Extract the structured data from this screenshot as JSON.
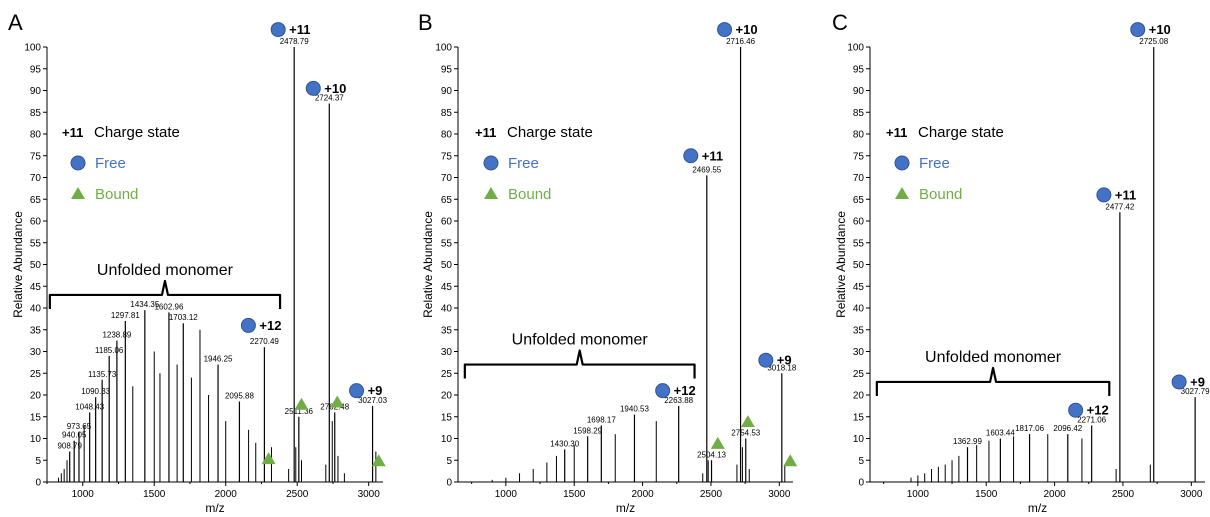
{
  "colors": {
    "free": "#4472C4",
    "bound": "#70AD47",
    "axis": "#000000"
  },
  "legend": {
    "charge_symbol": "+11",
    "charge_label": "Charge state",
    "free_label": "Free",
    "bound_label": "Bound"
  },
  "chart_data": [
    {
      "type": "bar",
      "panel": "A",
      "xlabel": "m/z",
      "ylabel": "Relative Abundance",
      "xlim": [
        750,
        3100
      ],
      "ylim": [
        0,
        100
      ],
      "xticks": [
        1000,
        1500,
        2000,
        2500,
        3000
      ],
      "yticks": [
        0,
        5,
        10,
        15,
        20,
        25,
        30,
        35,
        40,
        45,
        50,
        55,
        60,
        65,
        70,
        75,
        80,
        85,
        90,
        95,
        100
      ],
      "bracket_label": "Unfolded monomer",
      "bracket_range": [
        770,
        2380
      ],
      "bracket_y": 43,
      "peaks": [
        {
          "mz": 908.79,
          "y": 7,
          "label": "908.79"
        },
        {
          "mz": 940.05,
          "y": 9.5,
          "label": "940.05"
        },
        {
          "mz": 973.65,
          "y": 11.5,
          "label": "973.65"
        },
        {
          "mz": 1048.43,
          "y": 16,
          "label": "1048.43"
        },
        {
          "mz": 1090.33,
          "y": 19.5,
          "label": "1090.33"
        },
        {
          "mz": 1135.73,
          "y": 23.5,
          "label": "1135.73"
        },
        {
          "mz": 1185.06,
          "y": 29,
          "label": "1185.06"
        },
        {
          "mz": 1238.89,
          "y": 32.5,
          "label": "1238.89"
        },
        {
          "mz": 1297.81,
          "y": 37,
          "label": "1297.81"
        },
        {
          "mz": 1434.35,
          "y": 39.5,
          "label": "1434.35"
        },
        {
          "mz": 1602.96,
          "y": 39,
          "label": "1602.96"
        },
        {
          "mz": 1703.12,
          "y": 36.5,
          "label": "1703.12"
        },
        {
          "mz": 1946.25,
          "y": 27,
          "label": "1946.25"
        },
        {
          "mz": 2095.88,
          "y": 18.5,
          "label": "2095.88"
        },
        {
          "mz": 2270.49,
          "y": 31,
          "label": "2270.49"
        },
        {
          "mz": 2478.79,
          "y": 100,
          "label": "2478.79"
        },
        {
          "mz": 2511.36,
          "y": 15,
          "label": "2511.36"
        },
        {
          "mz": 2724.37,
          "y": 87,
          "label": "2724.37"
        },
        {
          "mz": 2762.48,
          "y": 16,
          "label": "2762.48"
        },
        {
          "mz": 3027.03,
          "y": 17.5,
          "label": "3027.03"
        }
      ],
      "minor_peaks": [
        {
          "mz": 830,
          "y": 1
        },
        {
          "mz": 850,
          "y": 2
        },
        {
          "mz": 870,
          "y": 3
        },
        {
          "mz": 890,
          "y": 5
        },
        {
          "mz": 1010,
          "y": 13
        },
        {
          "mz": 1350,
          "y": 22
        },
        {
          "mz": 1500,
          "y": 30
        },
        {
          "mz": 1540,
          "y": 25
        },
        {
          "mz": 1660,
          "y": 27
        },
        {
          "mz": 1760,
          "y": 24
        },
        {
          "mz": 1820,
          "y": 35
        },
        {
          "mz": 1880,
          "y": 20
        },
        {
          "mz": 2000,
          "y": 14
        },
        {
          "mz": 2160,
          "y": 12
        },
        {
          "mz": 2210,
          "y": 9
        },
        {
          "mz": 2320,
          "y": 8
        },
        {
          "mz": 2440,
          "y": 3
        },
        {
          "mz": 2490,
          "y": 8
        },
        {
          "mz": 2530,
          "y": 5
        },
        {
          "mz": 2700,
          "y": 4
        },
        {
          "mz": 2745,
          "y": 14
        },
        {
          "mz": 2785,
          "y": 6
        },
        {
          "mz": 2830,
          "y": 2
        },
        {
          "mz": 3050,
          "y": 7
        }
      ],
      "free_markers": [
        {
          "mz": 2478.79,
          "y": 104,
          "charge": "+11"
        },
        {
          "mz": 2724.37,
          "y": 90.5,
          "charge": "+10"
        },
        {
          "mz": 2270.49,
          "y": 36,
          "charge": "+12"
        },
        {
          "mz": 3027.03,
          "y": 21,
          "charge": "+9"
        }
      ],
      "bound_markers": [
        {
          "mz": 2300,
          "y": 5.5
        },
        {
          "mz": 2530,
          "y": 18
        },
        {
          "mz": 2780,
          "y": 18.5
        },
        {
          "mz": 3070,
          "y": 5
        }
      ]
    },
    {
      "type": "bar",
      "panel": "B",
      "xlabel": "m/z",
      "ylabel": "Relative Abundance",
      "xlim": [
        650,
        3100
      ],
      "ylim": [
        0,
        100
      ],
      "xticks": [
        1000,
        1500,
        2000,
        2500,
        3000
      ],
      "yticks": [
        0,
        5,
        10,
        15,
        20,
        25,
        30,
        35,
        40,
        45,
        50,
        55,
        60,
        65,
        70,
        75,
        80,
        85,
        90,
        95,
        100
      ],
      "bracket_label": "Unfolded monomer",
      "bracket_range": [
        700,
        2380
      ],
      "bracket_y": 27,
      "peaks": [
        {
          "mz": 1430.3,
          "y": 7.5,
          "label": "1430.30"
        },
        {
          "mz": 1598.29,
          "y": 10.5,
          "label": "1598.29"
        },
        {
          "mz": 1698.17,
          "y": 13,
          "label": "1698.17"
        },
        {
          "mz": 1940.53,
          "y": 15.5,
          "label": "1940.53"
        },
        {
          "mz": 2263.88,
          "y": 17.5,
          "label": "2263.88"
        },
        {
          "mz": 2469.55,
          "y": 70.5,
          "label": "2469.55"
        },
        {
          "mz": 2504.13,
          "y": 5,
          "label": "2504.13"
        },
        {
          "mz": 2716.46,
          "y": 100,
          "label": "2716.46"
        },
        {
          "mz": 2754.53,
          "y": 10,
          "label": "2754.53"
        },
        {
          "mz": 3018.18,
          "y": 25,
          "label": "3018.18"
        }
      ],
      "minor_peaks": [
        {
          "mz": 900,
          "y": 0.5
        },
        {
          "mz": 1000,
          "y": 1
        },
        {
          "mz": 1100,
          "y": 2
        },
        {
          "mz": 1200,
          "y": 3
        },
        {
          "mz": 1300,
          "y": 4.5
        },
        {
          "mz": 1370,
          "y": 6
        },
        {
          "mz": 1500,
          "y": 8.5
        },
        {
          "mz": 1800,
          "y": 11
        },
        {
          "mz": 2100,
          "y": 14
        },
        {
          "mz": 2440,
          "y": 2
        },
        {
          "mz": 2480,
          "y": 5
        },
        {
          "mz": 2690,
          "y": 4
        },
        {
          "mz": 2730,
          "y": 8
        },
        {
          "mz": 2780,
          "y": 3
        },
        {
          "mz": 3040,
          "y": 4
        }
      ],
      "free_markers": [
        {
          "mz": 2716.46,
          "y": 104,
          "charge": "+10"
        },
        {
          "mz": 2469.55,
          "y": 75,
          "charge": "+11"
        },
        {
          "mz": 2263.88,
          "y": 21,
          "charge": "+12"
        },
        {
          "mz": 3018.18,
          "y": 28,
          "charge": "+9"
        }
      ],
      "bound_markers": [
        {
          "mz": 2550,
          "y": 9
        },
        {
          "mz": 2770,
          "y": 14
        },
        {
          "mz": 3080,
          "y": 5
        }
      ]
    },
    {
      "type": "bar",
      "panel": "C",
      "xlabel": "m/z",
      "ylabel": "Relative Abundance",
      "xlim": [
        650,
        3100
      ],
      "ylim": [
        0,
        100
      ],
      "xticks": [
        1000,
        1500,
        2000,
        2500,
        3000
      ],
      "yticks": [
        0,
        5,
        10,
        15,
        20,
        25,
        30,
        35,
        40,
        45,
        50,
        55,
        60,
        65,
        70,
        75,
        80,
        85,
        90,
        95,
        100
      ],
      "bracket_label": "Unfolded monomer",
      "bracket_range": [
        700,
        2400
      ],
      "bracket_y": 23,
      "peaks": [
        {
          "mz": 1362.99,
          "y": 8,
          "label": "1362.99"
        },
        {
          "mz": 1603.44,
          "y": 10,
          "label": "1603.44"
        },
        {
          "mz": 1817.06,
          "y": 11,
          "label": "1817.06"
        },
        {
          "mz": 2096.42,
          "y": 11,
          "label": "2096.42"
        },
        {
          "mz": 2271.06,
          "y": 13,
          "label": "2271.06"
        },
        {
          "mz": 2477.42,
          "y": 62,
          "label": "2477.42"
        },
        {
          "mz": 2725.08,
          "y": 100,
          "label": "2725.08"
        },
        {
          "mz": 3027.79,
          "y": 19.5,
          "label": "3027.79"
        }
      ],
      "minor_peaks": [
        {
          "mz": 950,
          "y": 1
        },
        {
          "mz": 1000,
          "y": 1.5
        },
        {
          "mz": 1050,
          "y": 2
        },
        {
          "mz": 1100,
          "y": 3
        },
        {
          "mz": 1150,
          "y": 3.5
        },
        {
          "mz": 1200,
          "y": 4
        },
        {
          "mz": 1250,
          "y": 5
        },
        {
          "mz": 1300,
          "y": 6
        },
        {
          "mz": 1430,
          "y": 8.5
        },
        {
          "mz": 1520,
          "y": 9.5
        },
        {
          "mz": 1700,
          "y": 10.5
        },
        {
          "mz": 1950,
          "y": 11
        },
        {
          "mz": 2200,
          "y": 10
        },
        {
          "mz": 2450,
          "y": 3
        },
        {
          "mz": 2700,
          "y": 4
        }
      ],
      "free_markers": [
        {
          "mz": 2725.08,
          "y": 104,
          "charge": "+10"
        },
        {
          "mz": 2477.42,
          "y": 66,
          "charge": "+11"
        },
        {
          "mz": 2271.06,
          "y": 16.5,
          "charge": "+12"
        },
        {
          "mz": 3027.79,
          "y": 23,
          "charge": "+9"
        }
      ],
      "bound_markers": []
    }
  ]
}
